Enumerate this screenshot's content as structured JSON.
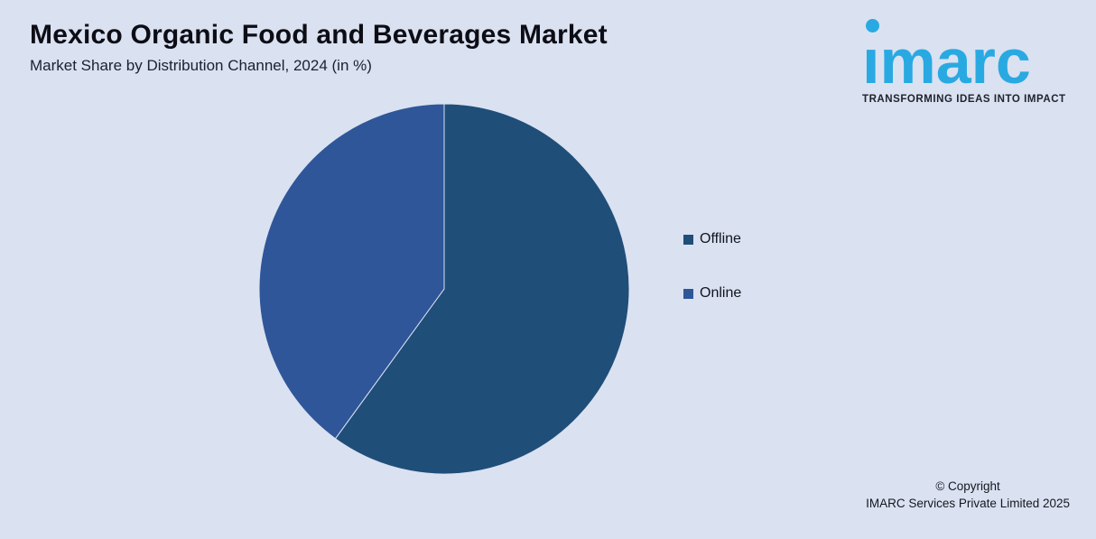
{
  "header": {
    "title": "Mexico Organic Food and Beverages Market",
    "subtitle": "Market Share by Distribution Channel, 2024 (in %)"
  },
  "chart_data": {
    "type": "pie",
    "title": "Mexico Organic Food and Beverages Market",
    "subtitle": "Market Share by Distribution Channel, 2024 (in %)",
    "labels": [
      "Offline",
      "Online"
    ],
    "values": [
      60,
      40
    ],
    "unit": "%",
    "colors": [
      "#1F4E79",
      "#2F5699"
    ],
    "start_angle_deg": 0,
    "direction": "clockwise",
    "legend_position": "right",
    "data_labels_visible": false
  },
  "legend": {
    "items": [
      {
        "label": "Offline",
        "color": "#1F4E79"
      },
      {
        "label": "Online",
        "color": "#2F5699"
      }
    ]
  },
  "logo": {
    "text": "imarc",
    "tagline": "TRANSFORMING IDEAS INTO IMPACT",
    "brand_color": "#29A9E1"
  },
  "footer": {
    "copyright_line1": "© Copyright",
    "copyright_line2": "IMARC Services Private Limited 2025"
  },
  "colors": {
    "background": "#DAE1F1",
    "title_text": "#0D0D15",
    "body_text": "#1B2130",
    "slice_divider": "#DAE1F1"
  }
}
